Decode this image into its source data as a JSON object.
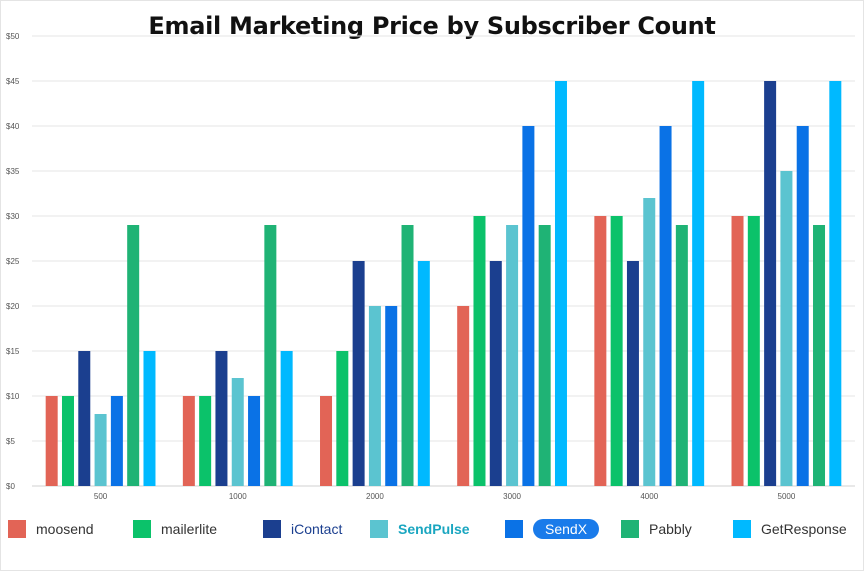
{
  "chart_data": {
    "type": "bar",
    "title": "Email Marketing Price by Subscriber Count",
    "xlabel": "",
    "ylabel": "",
    "categories": [
      "500",
      "1000",
      "2000",
      "3000",
      "4000",
      "5000"
    ],
    "ylim": [
      0,
      50
    ],
    "yticks": [
      "$0",
      "$5",
      "$10",
      "$15",
      "$20",
      "$25",
      "$30",
      "$35",
      "$40",
      "$45",
      "$50"
    ],
    "grid": true,
    "legend_position": "bottom",
    "series": [
      {
        "name": "moosend",
        "color": "#e26456",
        "values": [
          10,
          10,
          10,
          20,
          30,
          30
        ]
      },
      {
        "name": "mailerlite",
        "color": "#0bc26a",
        "values": [
          10,
          10,
          15,
          30,
          30,
          30
        ]
      },
      {
        "name": "iContact",
        "color": "#1b3f8f",
        "values": [
          15,
          15,
          25,
          25,
          25,
          45
        ]
      },
      {
        "name": "SendPulse",
        "color": "#5bc4d0",
        "values": [
          8,
          12,
          20,
          29,
          32,
          35
        ]
      },
      {
        "name": "SendX",
        "color": "#0a72e6",
        "values": [
          10,
          10,
          20,
          40,
          40,
          40
        ]
      },
      {
        "name": "Pabbly",
        "color": "#1fb375",
        "values": [
          29,
          29,
          29,
          29,
          29,
          29
        ]
      },
      {
        "name": "GetResponse",
        "color": "#00b9ff",
        "values": [
          15,
          15,
          25,
          45,
          45,
          45
        ]
      }
    ]
  }
}
